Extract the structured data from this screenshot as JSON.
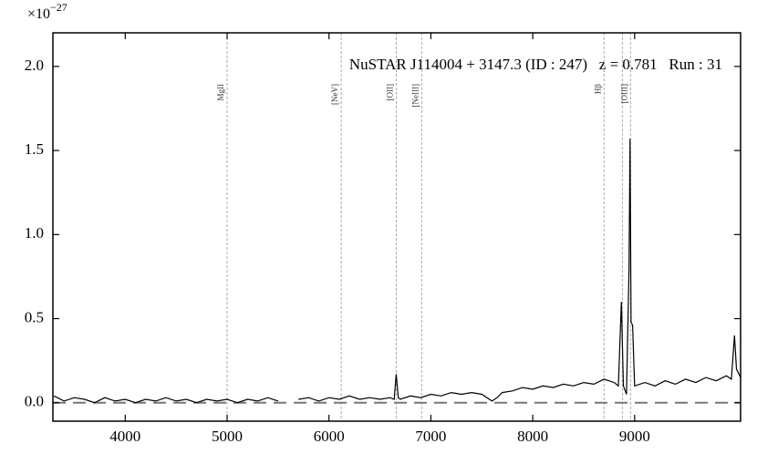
{
  "chart_data": {
    "type": "line",
    "title": "NuSTAR J114004 + 3147.3 (ID : 247)   z = 0.781   Run : 31",
    "scale_label": {
      "base": "×10",
      "exponent": "−27"
    },
    "color": "#000000",
    "x": [
      3300,
      3400,
      3500,
      3600,
      3700,
      3800,
      3900,
      4000,
      4100,
      4200,
      4300,
      4400,
      4500,
      4600,
      4700,
      4800,
      4900,
      5000,
      5100,
      5200,
      5300,
      5400,
      5500,
      5600,
      5700,
      5800,
      5900,
      6000,
      6100,
      6200,
      6300,
      6400,
      6500,
      6600,
      6640,
      6660,
      6680,
      6700,
      6800,
      6900,
      7000,
      7100,
      7200,
      7300,
      7400,
      7500,
      7600,
      7650,
      7700,
      7800,
      7900,
      8000,
      8100,
      8200,
      8300,
      8400,
      8500,
      8600,
      8700,
      8800,
      8840,
      8870,
      8890,
      8920,
      8945,
      8955,
      8965,
      8980,
      9000,
      9100,
      9200,
      9300,
      9400,
      9500,
      9600,
      9700,
      9800,
      9900,
      9950,
      9980,
      10000,
      10040
    ],
    "values": [
      0.04,
      0.01,
      0.03,
      0.02,
      0.0,
      0.03,
      0.01,
      0.02,
      0.0,
      0.02,
      0.01,
      0.03,
      0.01,
      0.02,
      0.0,
      0.02,
      0.01,
      0.02,
      0.0,
      0.02,
      0.01,
      0.03,
      0.01,
      null,
      0.02,
      0.03,
      0.01,
      0.03,
      0.02,
      0.04,
      0.02,
      0.03,
      0.02,
      0.03,
      0.02,
      0.17,
      0.03,
      0.02,
      0.04,
      0.03,
      0.05,
      0.04,
      0.06,
      0.05,
      0.06,
      0.05,
      0.01,
      0.03,
      0.06,
      0.07,
      0.09,
      0.08,
      0.1,
      0.09,
      0.11,
      0.1,
      0.12,
      0.11,
      0.14,
      0.12,
      0.1,
      0.6,
      0.1,
      0.05,
      0.8,
      1.57,
      0.48,
      0.46,
      0.1,
      0.12,
      0.1,
      0.13,
      0.11,
      0.14,
      0.12,
      0.15,
      0.13,
      0.16,
      0.14,
      0.4,
      0.2,
      0.15
    ],
    "zero_line": 0,
    "lines": [
      {
        "label": "MgII",
        "x": 5000
      },
      {
        "label": "[NeV]",
        "x": 6120
      },
      {
        "label": "[OII]",
        "x": 6660
      },
      {
        "label": "[NeIII]",
        "x": 6910
      },
      {
        "label": "Hβ",
        "x": 8700
      },
      {
        "label": null,
        "x": 8880
      },
      {
        "label": "[OIII]",
        "x": 8960
      }
    ],
    "xlim": [
      3290,
      10040
    ],
    "ylim": [
      -0.11,
      2.2
    ],
    "xticks": [
      4000,
      5000,
      6000,
      7000,
      8000,
      9000
    ],
    "yticks": [
      {
        "value": 0,
        "label": "0.0"
      },
      0.5,
      {
        "value": 1,
        "label": "1.0"
      },
      1.5,
      {
        "value": 2,
        "label": "2.0"
      }
    ]
  }
}
